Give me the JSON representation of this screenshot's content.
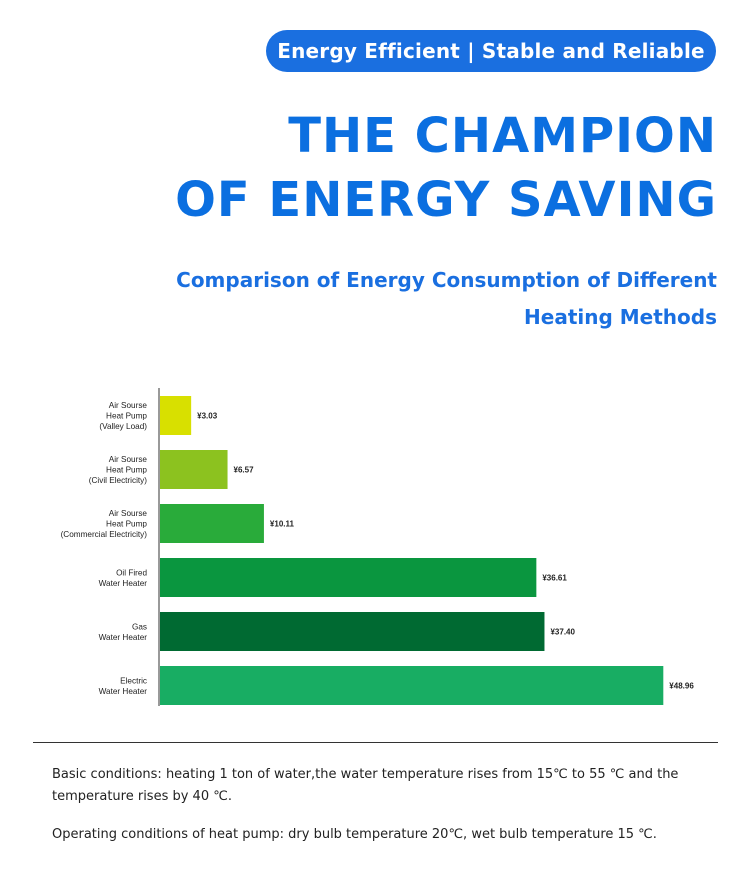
{
  "header": {
    "tagline": "Energy Efficient | Stable and Reliable",
    "headline_line1": "THE CHAMPION",
    "headline_line2": "OF ENERGY SAVING",
    "subtitle_line1": "Comparison of Energy Consumption of Different",
    "subtitle_line2": "Heating Methods"
  },
  "chart_data": {
    "type": "bar",
    "orientation": "horizontal",
    "title": "Comparison of Energy Consumption of Different Heating Methods",
    "xlabel": "",
    "ylabel": "",
    "xlim": [
      0,
      50
    ],
    "grid": false,
    "categories": [
      [
        "Air Sourse",
        "Heat Pump",
        "(Valley Load)"
      ],
      [
        "Air Sourse",
        "Heat Pump",
        "(Civil Electricity)"
      ],
      [
        "Air Sourse",
        "Heat Pump",
        "(Commercial Electricity)"
      ],
      [
        "Oil Fired",
        "Water Heater"
      ],
      [
        "Gas",
        "Water Heater"
      ],
      [
        "Electric",
        "Water Heater"
      ]
    ],
    "values": [
      3.03,
      6.57,
      10.11,
      36.61,
      37.4,
      48.96
    ],
    "value_labels": [
      "¥3.03",
      "¥6.57",
      "¥10.11",
      "¥36.61",
      "¥37.40",
      "¥48.96"
    ],
    "colors": [
      "#d8e000",
      "#8cc21f",
      "#29ab3a",
      "#0a963f",
      "#006a32",
      "#18ad63"
    ]
  },
  "footer": {
    "condition_1": "Basic conditions: heating 1 ton of water,the water temperature rises from 15℃  to 55 ℃ and the temperature rises by 40 ℃.",
    "condition_2": "Operating conditions of heat pump: dry bulb temperature 20℃, wet bulb temperature 15 ℃."
  }
}
